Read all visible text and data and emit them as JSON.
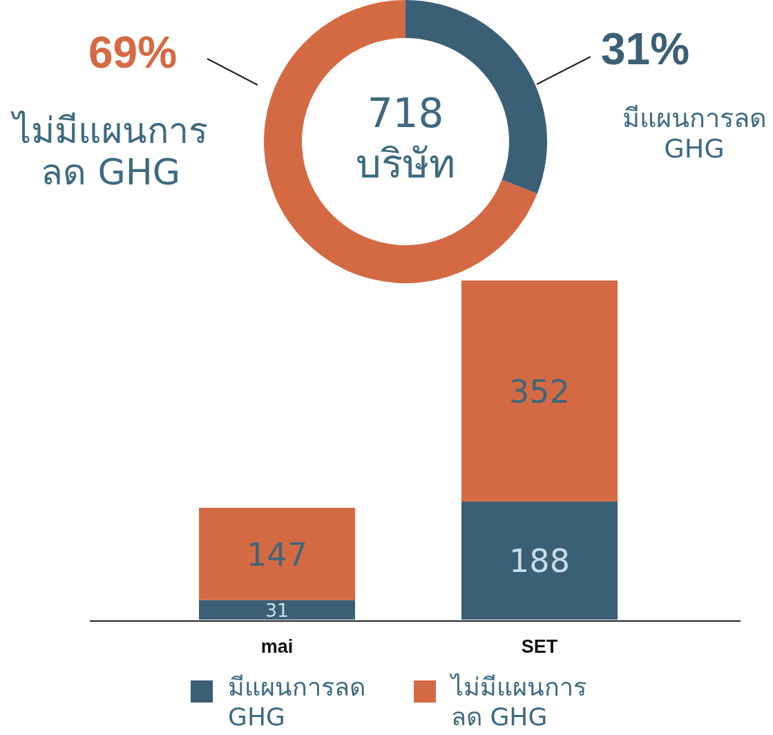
{
  "chart_data": [
    {
      "type": "donut",
      "categories": [
        "มีแผนการลด GHG",
        "ไม่มีแผนการลด GHG"
      ],
      "values": [
        31,
        69
      ],
      "colors": [
        "#3b5f75",
        "#d46a43"
      ],
      "value_labels": [
        "31%",
        "69%"
      ],
      "annotations": [
        "718 บริษัท"
      ]
    },
    {
      "type": "bar",
      "stacked": true,
      "categories": [
        "mai",
        "SET"
      ],
      "series": [
        {
          "name": "มีแผนการลด GHG",
          "color": "#3b5f75",
          "values": [
            31,
            188
          ]
        },
        {
          "name": "ไม่มีแผนการลด GHG",
          "color": "#d46a43",
          "values": [
            147,
            352
          ]
        }
      ],
      "data_labels": true,
      "legend": "bottom"
    }
  ]
}
